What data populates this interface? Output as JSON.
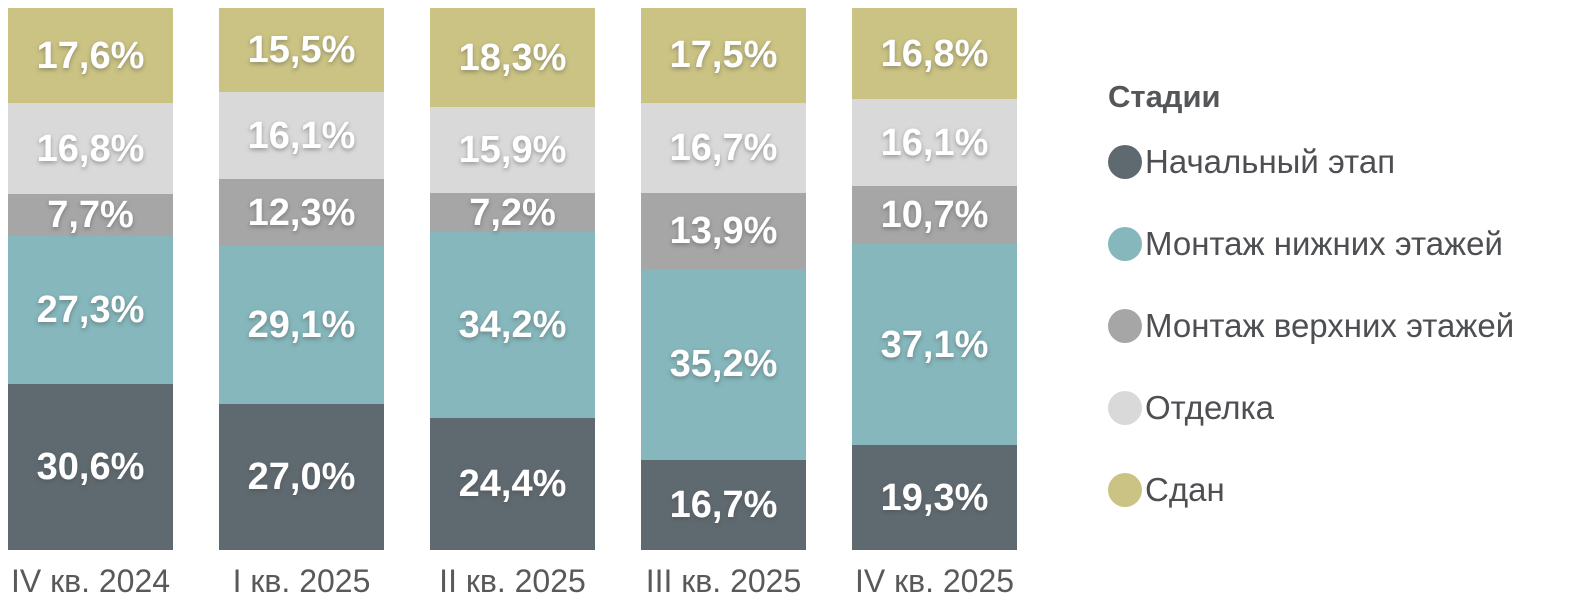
{
  "chart_data": {
    "type": "bar",
    "stacked": true,
    "orientation": "vertical",
    "title": "",
    "xlabel": "",
    "ylabel": "",
    "ylim": [
      0,
      100
    ],
    "grid": false,
    "value_label_format": "decimal-comma-percent",
    "categories": [
      "IV кв. 2024",
      "I кв. 2025",
      "II кв. 2025",
      "III кв. 2025",
      "IV кв. 2025"
    ],
    "series": [
      {
        "name": "Начальный этап",
        "color": "#5F6A70",
        "values": [
          30.6,
          27.0,
          24.4,
          16.7,
          19.3
        ]
      },
      {
        "name": "Монтаж нижних этажей",
        "color": "#85B7BC",
        "values": [
          27.3,
          29.1,
          34.2,
          35.2,
          37.1
        ]
      },
      {
        "name": "Монтаж верхних этажей",
        "color": "#A6A6A6",
        "values": [
          7.7,
          12.3,
          7.2,
          13.9,
          10.7
        ]
      },
      {
        "name": "Отделка",
        "color": "#D9D9D9",
        "values": [
          16.8,
          16.1,
          15.9,
          16.7,
          16.1
        ]
      },
      {
        "name": "Сдан",
        "color": "#CBC383",
        "values": [
          17.6,
          15.5,
          18.3,
          17.5,
          16.8
        ]
      }
    ],
    "legend": {
      "title": "Стадии",
      "position": "right"
    }
  },
  "colors": {
    "background": "#FFFFFF",
    "value_label_text": "#FFFFFF",
    "axis_label_text": "#595959",
    "legend_title_text": "#54565A",
    "legend_item_text": "#4D4F52"
  }
}
